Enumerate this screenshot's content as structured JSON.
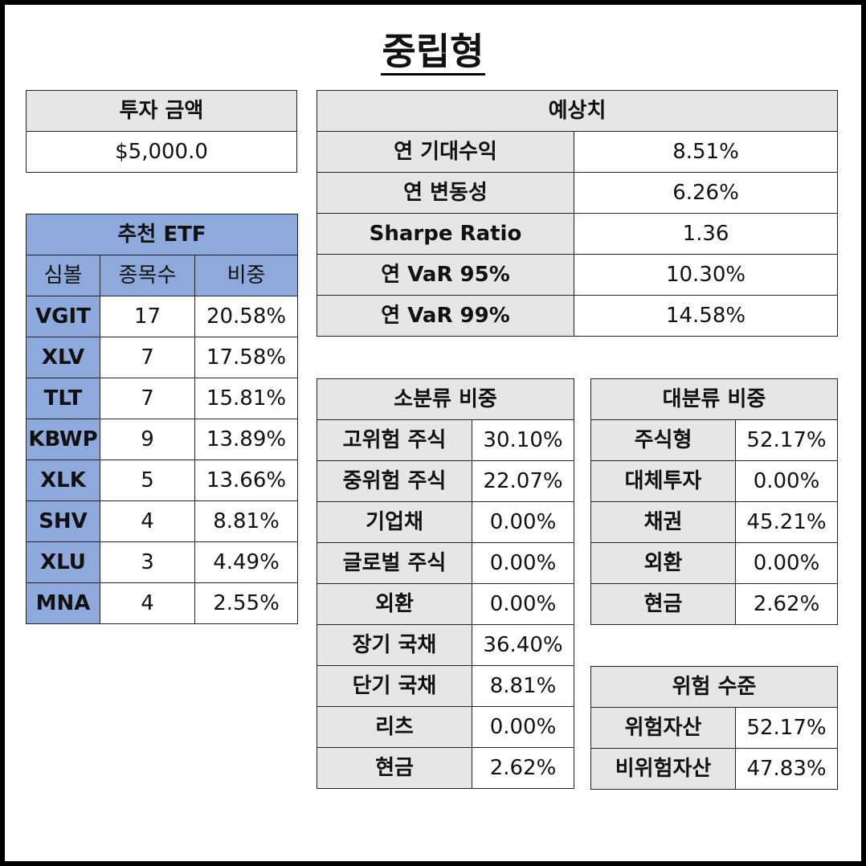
{
  "title": "중립형",
  "investment": {
    "header": "투자 금액",
    "amount": "$5,000.0"
  },
  "expected": {
    "header": "예상치",
    "rows": [
      {
        "label": "연 기대수익",
        "value": "8.51%"
      },
      {
        "label": "연 변동성",
        "value": "6.26%"
      },
      {
        "label": "Sharpe Ratio",
        "value": "1.36"
      },
      {
        "label": "연 VaR 95%",
        "value": "10.30%"
      },
      {
        "label": "연 VaR 99%",
        "value": "14.58%"
      }
    ]
  },
  "etf": {
    "header": "추천 ETF",
    "columns": [
      "심볼",
      "종목수",
      "비중"
    ],
    "rows": [
      {
        "symbol": "VGIT",
        "count": "17",
        "weight": "20.58%"
      },
      {
        "symbol": "XLV",
        "count": "7",
        "weight": "17.58%"
      },
      {
        "symbol": "TLT",
        "count": "7",
        "weight": "15.81%"
      },
      {
        "symbol": "KBWP",
        "count": "9",
        "weight": "13.89%"
      },
      {
        "symbol": "XLK",
        "count": "5",
        "weight": "13.66%"
      },
      {
        "symbol": "SHV",
        "count": "4",
        "weight": "8.81%"
      },
      {
        "symbol": "XLU",
        "count": "3",
        "weight": "4.49%"
      },
      {
        "symbol": "MNA",
        "count": "4",
        "weight": "2.55%"
      }
    ]
  },
  "sub_category": {
    "header": "소분류 비중",
    "rows": [
      {
        "label": "고위험 주식",
        "value": "30.10%"
      },
      {
        "label": "중위험 주식",
        "value": "22.07%"
      },
      {
        "label": "기업채",
        "value": "0.00%"
      },
      {
        "label": "글로벌 주식",
        "value": "0.00%"
      },
      {
        "label": "외환",
        "value": "0.00%"
      },
      {
        "label": "장기 국채",
        "value": "36.40%"
      },
      {
        "label": "단기 국채",
        "value": "8.81%"
      },
      {
        "label": "리츠",
        "value": "0.00%"
      },
      {
        "label": "현금",
        "value": "2.62%"
      }
    ]
  },
  "major_category": {
    "header": "대분류 비중",
    "rows": [
      {
        "label": "주식형",
        "value": "52.17%"
      },
      {
        "label": "대체투자",
        "value": "0.00%"
      },
      {
        "label": "채권",
        "value": "45.21%"
      },
      {
        "label": "외환",
        "value": "0.00%"
      },
      {
        "label": "현금",
        "value": "2.62%"
      }
    ]
  },
  "risk": {
    "header": "위험 수준",
    "rows": [
      {
        "label": "위험자산",
        "value": "52.17%"
      },
      {
        "label": "비위험자산",
        "value": "47.83%"
      }
    ]
  }
}
